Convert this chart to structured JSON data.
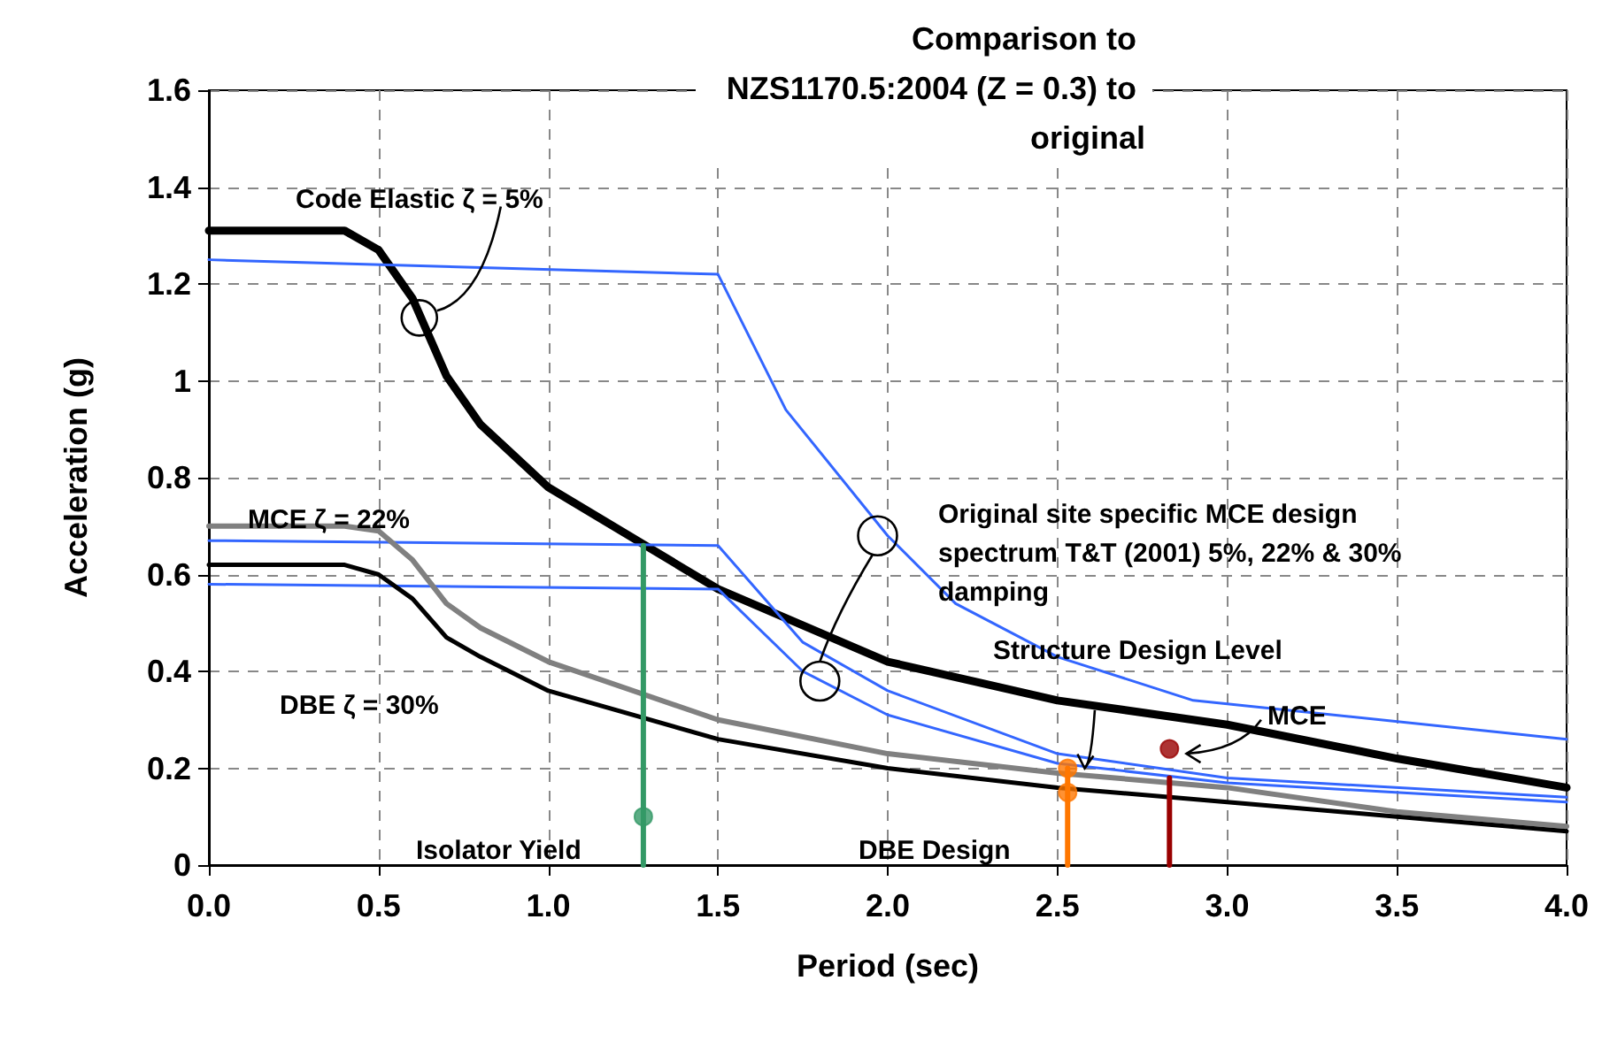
{
  "chart_data": {
    "type": "line",
    "title": "Comparison to NZS1170.5:2004 (Z = 0.3) to original",
    "xlabel": "Period (sec)",
    "ylabel": "Acceleration (g)",
    "xlim": [
      0,
      4
    ],
    "xticks": [
      {
        "value": 0,
        "label": "0.0"
      },
      {
        "value": 0.5,
        "label": "0.5"
      },
      {
        "value": 1,
        "label": "1.0"
      },
      {
        "value": 1.5,
        "label": "1.5"
      },
      {
        "value": 2,
        "label": "2.0"
      },
      {
        "value": 2.5,
        "label": "2.5"
      },
      {
        "value": 3,
        "label": "3.0"
      },
      {
        "value": 3.5,
        "label": "3.5"
      },
      {
        "value": 4,
        "label": "4.0"
      }
    ],
    "ylim": [
      0,
      1.6
    ],
    "yticks": [
      0,
      0.2,
      0.4,
      0.6,
      0.8,
      1,
      1.2,
      1.4,
      1.6
    ],
    "grid": true,
    "marker": "none",
    "line_style": "solid",
    "series": [
      {
        "color": "#000000",
        "x": [
          0,
          0.4,
          0.5,
          0.6,
          0.7,
          0.8,
          1.0,
          1.5,
          2.0,
          2.5,
          3.0,
          3.5,
          4.0
        ],
        "values": [
          1.31,
          1.31,
          1.27,
          1.17,
          1.01,
          0.91,
          0.78,
          0.57,
          0.42,
          0.34,
          0.29,
          0.22,
          0.16
        ]
      },
      {
        "color": "#3366ff",
        "x": [
          0,
          1.5,
          1.7,
          2.0,
          2.2,
          2.5,
          2.9,
          4.0
        ],
        "values": [
          1.25,
          1.22,
          0.94,
          0.68,
          0.54,
          0.43,
          0.34,
          0.26
        ]
      },
      {
        "color": "#3366ff",
        "x": [
          0,
          1.5,
          1.75,
          2.0,
          2.5,
          3.0,
          4.0
        ],
        "values": [
          0.67,
          0.66,
          0.46,
          0.36,
          0.23,
          0.18,
          0.14
        ]
      },
      {
        "color": "#3366ff",
        "x": [
          0,
          1.5,
          1.75,
          2.0,
          2.5,
          3.0,
          4.0
        ],
        "values": [
          0.58,
          0.57,
          0.4,
          0.31,
          0.21,
          0.17,
          0.13
        ]
      },
      {
        "color": "#808080",
        "x": [
          0,
          0.4,
          0.5,
          0.6,
          0.7,
          0.8,
          1.0,
          1.5,
          2.0,
          2.5,
          3.0,
          3.5,
          4.0
        ],
        "values": [
          0.7,
          0.7,
          0.69,
          0.63,
          0.54,
          0.49,
          0.42,
          0.3,
          0.23,
          0.19,
          0.16,
          0.11,
          0.08
        ]
      },
      {
        "color": "#000000",
        "x": [
          0,
          0.4,
          0.5,
          0.6,
          0.7,
          0.8,
          1.0,
          1.5,
          2.0,
          2.5,
          3.0,
          3.5,
          4.0
        ],
        "values": [
          0.62,
          0.62,
          0.6,
          0.55,
          0.47,
          0.43,
          0.36,
          0.26,
          0.2,
          0.16,
          0.13,
          0.1,
          0.07
        ]
      },
      {
        "color": "#339966",
        "x": [
          1.28,
          1.28
        ],
        "values": [
          0,
          0.66
        ]
      },
      {
        "color": "#ff7700",
        "x": [
          2.53,
          2.53
        ],
        "values": [
          0,
          0.2
        ]
      },
      {
        "color": "#990000",
        "x": [
          2.83,
          2.83
        ],
        "values": [
          0,
          0.18
        ]
      },
      {
        "type": "scatter",
        "marker": "circle",
        "color": "#339966",
        "x": [
          1.28
        ],
        "values": [
          0.1
        ]
      },
      {
        "type": "scatter",
        "marker": "circle",
        "color": "#ff7700",
        "x": [
          2.53,
          2.53
        ],
        "values": [
          0.2,
          0.15
        ]
      },
      {
        "type": "scatter",
        "marker": "circle",
        "color": "#990000",
        "x": [
          2.83
        ],
        "values": [
          0.24
        ]
      }
    ],
    "annotations": [
      "Code Elastic ζ = 5%",
      "MCE ζ = 22%",
      "DBE ζ = 30%",
      "Original site specific MCE design spectrum T&T (2001) 5%, 22% & 30% damping",
      "Structure Design Level",
      "MCE",
      "Isolator Yield",
      "DBE Design"
    ]
  }
}
